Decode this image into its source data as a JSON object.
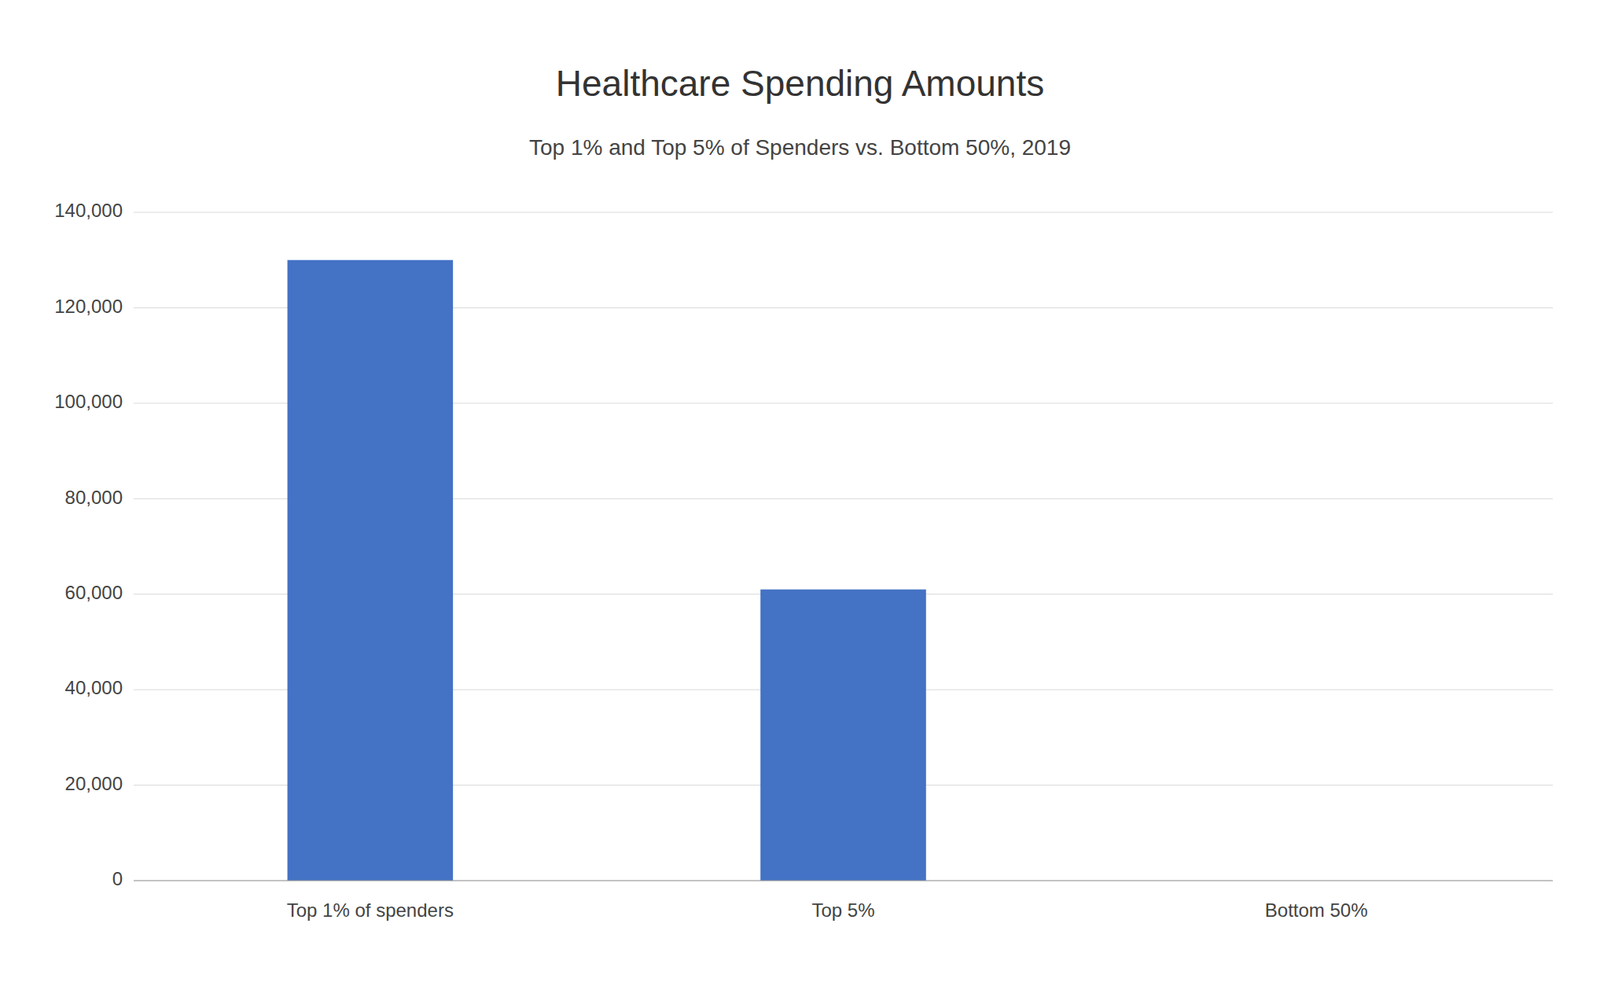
{
  "chart_data": {
    "type": "bar",
    "title": "Healthcare Spending Amounts",
    "subtitle": "Top 1% and Top 5% of Spenders vs. Bottom 50%, 2019",
    "categories": [
      "Top 1% of spenders",
      "Top 5%",
      "Bottom 50%"
    ],
    "values": [
      130000,
      61000,
      0
    ],
    "color": "#4472C4",
    "ylim": [
      0,
      140000
    ],
    "yticks": [
      0,
      {
        "value": 20000,
        "label": "20,000"
      },
      {
        "value": 40000,
        "label": "40,000"
      },
      {
        "value": 60000,
        "label": "60,000"
      },
      {
        "value": 80000,
        "label": "80,000"
      },
      {
        "value": 100000,
        "label": "100,000"
      },
      {
        "value": 120000,
        "label": "120,000"
      },
      {
        "value": 140000,
        "label": "140,000"
      }
    ],
    "grid": true
  }
}
